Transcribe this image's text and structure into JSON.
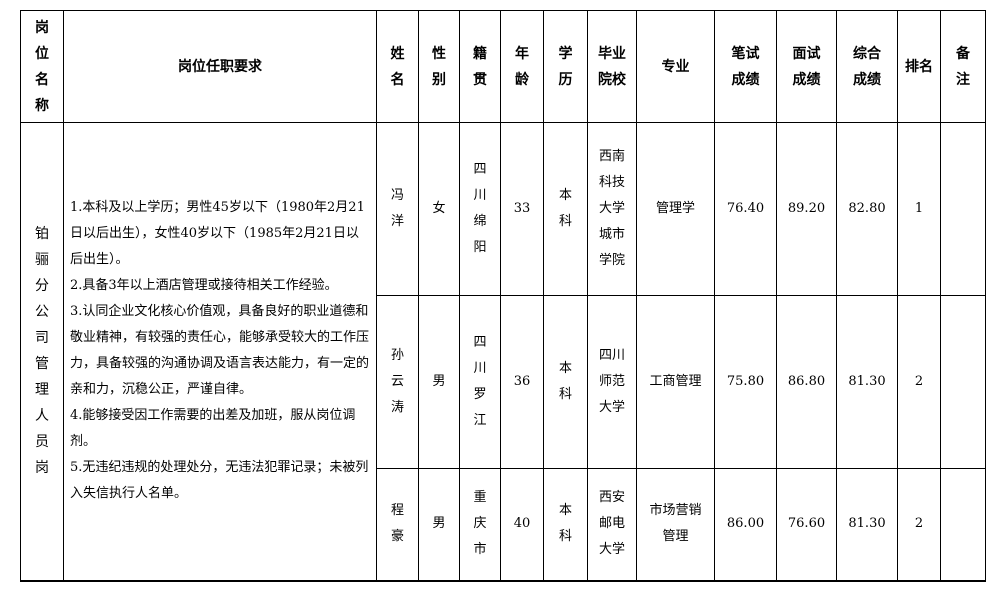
{
  "headers": {
    "position": "岗位名称",
    "requirements": "岗位任职要求",
    "name": "姓名",
    "gender": "性别",
    "origin": "籍贯",
    "age": "年龄",
    "education": "学历",
    "school": "毕业院校",
    "major": "专业",
    "written": "笔试成绩",
    "interview": "面试成绩",
    "total": "综合成绩",
    "rank": "排名",
    "remarks": "备注"
  },
  "position": "铂骊分公司管理人员岗",
  "requirements": [
    "1.本科及以上学历；男性45岁以下（1980年2月21日以后出生），女性40岁以下（1985年2月21日以后出生）。",
    "2.具备3年以上酒店管理或接待相关工作经验。",
    "3.认同企业文化核心价值观，具备良好的职业道德和敬业精神，有较强的责任心，能够承受较大的工作压力，具备较强的沟通协调及语言表达能力，有一定的亲和力，沉稳公正，严谨自律。",
    "4.能够接受因工作需要的出差及加班，服从岗位调剂。",
    "5.无违纪违规的处理处分，无违法犯罪记录；未被列入失信执行人名单。"
  ],
  "rows": [
    {
      "name": "冯洋",
      "gender": "女",
      "origin": "四川绵阳",
      "age": "33",
      "education": "本科",
      "school": "西南科技大学城市学院",
      "major": "管理学",
      "written": "76.40",
      "interview": "89.20",
      "total": "82.80",
      "rank": "1",
      "remarks": ""
    },
    {
      "name": "孙云涛",
      "gender": "男",
      "origin": "四川罗江",
      "age": "36",
      "education": "本科",
      "school": "四川师范大学",
      "major": "工商管理",
      "written": "75.80",
      "interview": "86.80",
      "total": "81.30",
      "rank": "2",
      "remarks": ""
    },
    {
      "name": "程豪",
      "gender": "男",
      "origin": "重庆市",
      "age": "40",
      "education": "本科",
      "school": "西安邮电大学",
      "major": "市场营销管理",
      "written": "86.00",
      "interview": "76.60",
      "total": "81.30",
      "rank": "2",
      "remarks": ""
    }
  ]
}
